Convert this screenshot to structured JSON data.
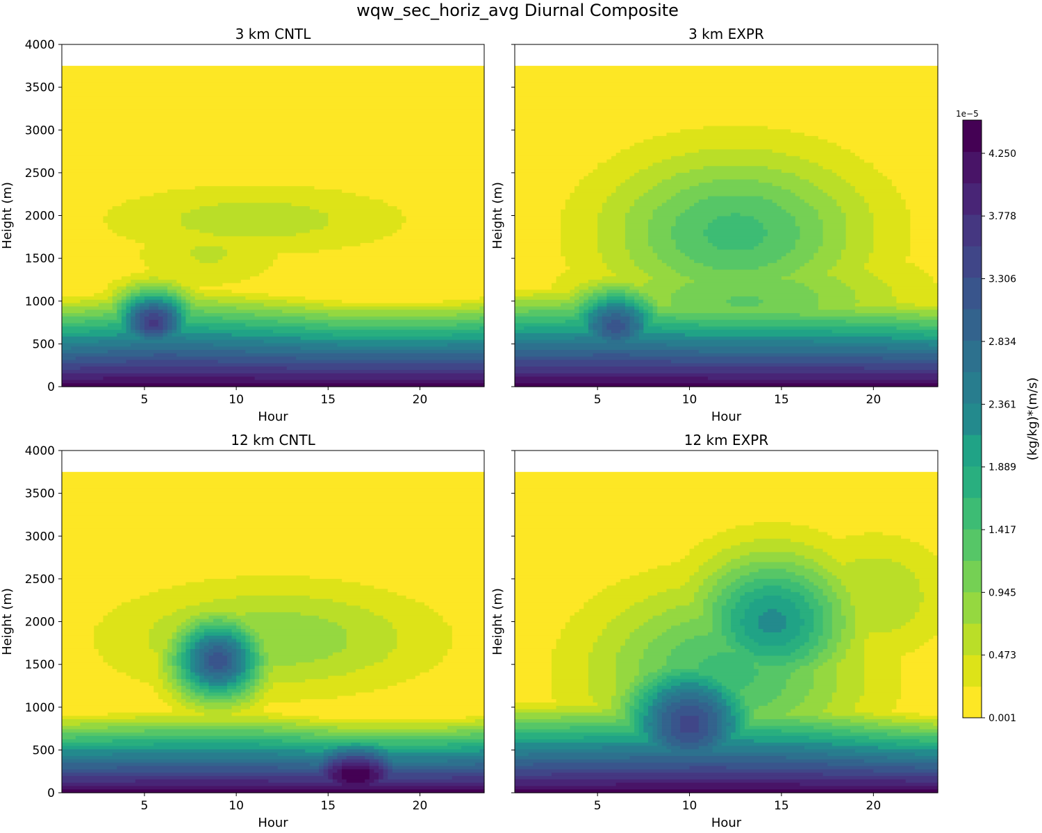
{
  "figure": {
    "title": "wqw_sec_horiz_avg Diurnal Composite"
  },
  "chart_data": {
    "type": "heatmap",
    "subtype": "filled-contour",
    "title": "wqw_sec_horiz_avg Diurnal Composite",
    "xlabel": "Hour",
    "ylabel": "Height (m)",
    "xlim": [
      0.5,
      23.5
    ],
    "ylim": [
      0,
      4000
    ],
    "x_ticks": [
      5,
      10,
      15,
      20
    ],
    "y_ticks": [
      0,
      500,
      1000,
      1500,
      2000,
      2500,
      3000,
      3500,
      4000
    ],
    "data_top_height": 3750,
    "colormap": "viridis_r",
    "colorbar": {
      "label": "(kg/kg)*(m/s)",
      "scale_label": "1e−5",
      "min": 0.001,
      "max": 4.5,
      "n_levels": 19,
      "ticks": [
        0.001,
        0.473,
        0.945,
        1.417,
        1.889,
        2.361,
        2.834,
        3.306,
        3.778,
        4.25
      ],
      "tick_labels": [
        "0.001",
        "0.473",
        "0.945",
        "1.417",
        "1.889",
        "2.361",
        "2.834",
        "3.306",
        "3.778",
        "4.250"
      ]
    },
    "panels": [
      {
        "title": "3 km CNTL",
        "surface_value": 4.4,
        "hours": [
          1,
          6,
          11,
          16,
          21,
          23.5
        ],
        "pbl_top": [
          1100,
          1250,
          1150,
          1050,
          1050,
          1100
        ],
        "blobs": [
          {
            "hour": 5.5,
            "height": 750,
            "peak": 3.6,
            "sigma_hour": 1.5,
            "sigma_height": 260
          },
          {
            "hour": 11,
            "height": 1950,
            "peak": 0.6,
            "sigma_hour": 6,
            "sigma_height": 300
          },
          {
            "hour": 8.5,
            "height": 1550,
            "peak": 0.5,
            "sigma_hour": 3,
            "sigma_height": 300
          }
        ]
      },
      {
        "title": "3 km EXPR",
        "surface_value": 4.4,
        "hours": [
          1,
          6,
          11,
          16,
          21,
          23.5
        ],
        "pbl_top": [
          1200,
          1250,
          1150,
          1150,
          1100,
          1050
        ],
        "blobs": [
          {
            "hour": 12.5,
            "height": 1800,
            "peak": 1.5,
            "sigma_hour": 5,
            "sigma_height": 650
          },
          {
            "hour": 6,
            "height": 700,
            "peak": 3.2,
            "sigma_hour": 1.8,
            "sigma_height": 300
          },
          {
            "hour": 13,
            "height": 1000,
            "peak": 1.2,
            "sigma_hour": 6,
            "sigma_height": 450
          }
        ]
      },
      {
        "title": "12 km CNTL",
        "surface_value": 4.4,
        "hours": [
          1,
          6,
          11,
          16,
          21,
          23.5
        ],
        "pbl_top": [
          950,
          1000,
          1000,
          900,
          900,
          950
        ],
        "blobs": [
          {
            "hour": 9,
            "height": 1550,
            "peak": 3.2,
            "sigma_hour": 1.7,
            "sigma_height": 330
          },
          {
            "hour": 16.5,
            "height": 200,
            "peak": 4.5,
            "sigma_hour": 2.5,
            "sigma_height": 280
          },
          {
            "hour": 12,
            "height": 1800,
            "peak": 0.9,
            "sigma_hour": 6,
            "sigma_height": 450
          },
          {
            "hour": 17,
            "height": 1700,
            "peak": 0.6,
            "sigma_hour": 2,
            "sigma_height": 300
          }
        ]
      },
      {
        "title": "12 km EXPR",
        "surface_value": 4.4,
        "hours": [
          1,
          6,
          11,
          16,
          21,
          23.5
        ],
        "pbl_top": [
          1100,
          1150,
          1200,
          1150,
          1000,
          950
        ],
        "blobs": [
          {
            "hour": 10,
            "height": 800,
            "peak": 3.4,
            "sigma_hour": 2.5,
            "sigma_height": 500
          },
          {
            "hour": 14.5,
            "height": 2000,
            "peak": 2.2,
            "sigma_hour": 3,
            "sigma_height": 550
          },
          {
            "hour": 12,
            "height": 1400,
            "peak": 1.5,
            "sigma_hour": 5,
            "sigma_height": 700
          },
          {
            "hour": 20,
            "height": 2300,
            "peak": 0.7,
            "sigma_hour": 3,
            "sigma_height": 500
          }
        ]
      }
    ]
  }
}
